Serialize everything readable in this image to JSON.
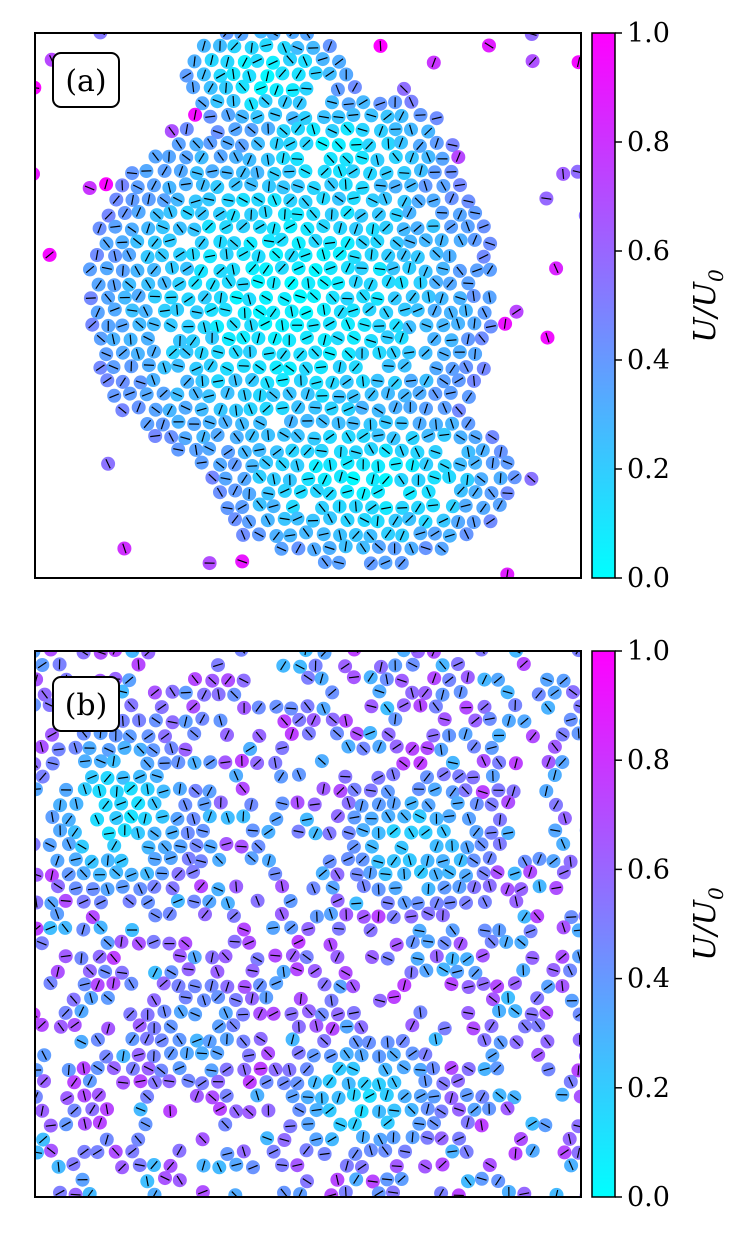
{
  "chart_data": [
    {
      "type": "scatter",
      "panel_label": "(a)",
      "description": "particle snapshot, dense clustered phase",
      "colorbar": {
        "label_main": "U/U",
        "label_sub": "0",
        "ticks": [
          "0.0",
          "0.2",
          "0.4",
          "0.6",
          "0.8",
          "1.0"
        ],
        "range": [
          0,
          1
        ],
        "color_low": "#00ffff",
        "color_high": "#ff00ff"
      },
      "clusters": [
        {
          "cx": 0.47,
          "cy": 0.48,
          "rx": 0.38,
          "ry": 0.36,
          "level": 0.08
        },
        {
          "cx": 0.42,
          "cy": 0.08,
          "rx": 0.16,
          "ry": 0.1,
          "level": 0.06
        },
        {
          "cx": 0.6,
          "cy": 0.82,
          "rx": 0.28,
          "ry": 0.16,
          "level": 0.08
        },
        {
          "cx": 0.55,
          "cy": 0.22,
          "rx": 0.22,
          "ry": 0.12,
          "level": 0.1
        }
      ],
      "gas_level": 0.75
    },
    {
      "type": "scatter",
      "panel_label": "(b)",
      "description": "particle snapshot, homogeneous phase",
      "colorbar": {
        "label_main": "U/U",
        "label_sub": "0",
        "ticks": [
          "0.0",
          "0.2",
          "0.4",
          "0.6",
          "0.8",
          "1.0"
        ],
        "range": [
          0,
          1
        ],
        "color_low": "#00ffff",
        "color_high": "#ff00ff"
      },
      "clusters": [
        {
          "cx": 0.15,
          "cy": 0.3,
          "rx": 0.15,
          "ry": 0.18,
          "level": 0.15
        },
        {
          "cx": 0.7,
          "cy": 0.35,
          "rx": 0.16,
          "ry": 0.14,
          "level": 0.2
        },
        {
          "cx": 0.6,
          "cy": 0.82,
          "rx": 0.16,
          "ry": 0.13,
          "level": 0.18
        },
        {
          "cx": 0.3,
          "cy": 0.7,
          "rx": 0.12,
          "ry": 0.12,
          "level": 0.3
        }
      ],
      "gas_level": 0.5
    }
  ]
}
